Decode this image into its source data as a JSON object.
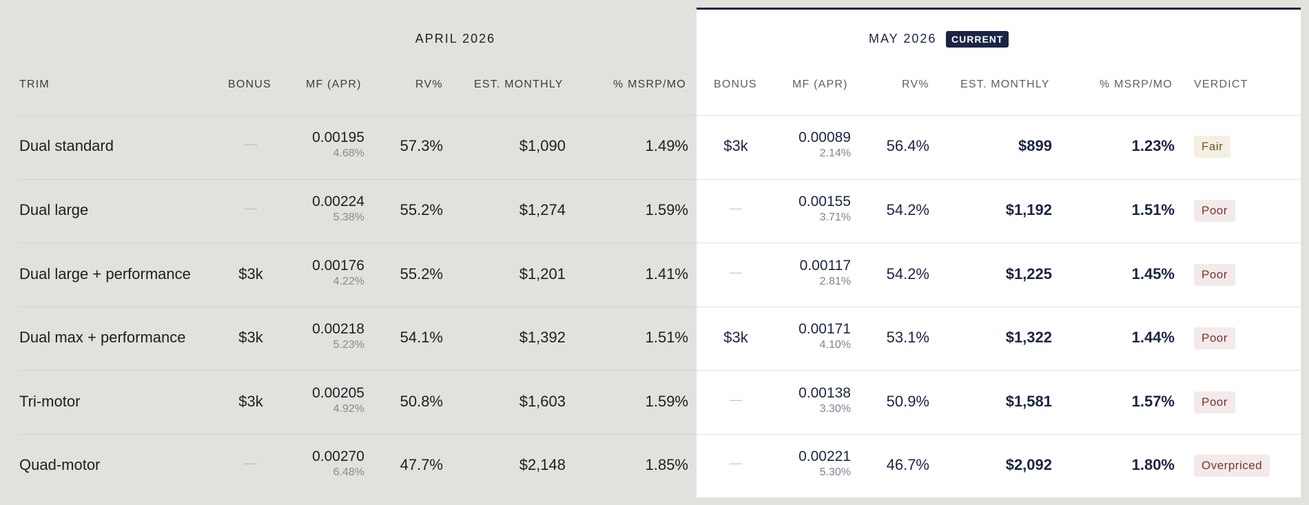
{
  "periods": {
    "april": "APRIL 2026",
    "may": "MAY 2026",
    "current_badge": "CURRENT"
  },
  "headers": {
    "trim": "TRIM",
    "april": [
      "BONUS",
      "MF (APR)",
      "RV%",
      "EST. MONTHLY",
      "% MSRP/MO"
    ],
    "may": [
      "BONUS",
      "MF (APR)",
      "RV%",
      "EST. MONTHLY",
      "% MSRP/MO",
      "VERDICT"
    ]
  },
  "rows": [
    {
      "trim": "Dual standard",
      "april": {
        "bonus": "—",
        "mf": "0.00195",
        "apr": "4.68%",
        "rv": "57.3%",
        "monthly": "$1,090",
        "msrp": "1.49%"
      },
      "may": {
        "bonus": "$3k",
        "mf": "0.00089",
        "apr": "2.14%",
        "rv": "56.4%",
        "monthly": "$899",
        "msrp": "1.23%",
        "verdict": "Fair"
      }
    },
    {
      "trim": "Dual large",
      "april": {
        "bonus": "—",
        "mf": "0.00224",
        "apr": "5.38%",
        "rv": "55.2%",
        "monthly": "$1,274",
        "msrp": "1.59%"
      },
      "may": {
        "bonus": "—",
        "mf": "0.00155",
        "apr": "3.71%",
        "rv": "54.2%",
        "monthly": "$1,192",
        "msrp": "1.51%",
        "verdict": "Poor"
      }
    },
    {
      "trim": "Dual large + performance",
      "april": {
        "bonus": "$3k",
        "mf": "0.00176",
        "apr": "4.22%",
        "rv": "55.2%",
        "monthly": "$1,201",
        "msrp": "1.41%"
      },
      "may": {
        "bonus": "—",
        "mf": "0.00117",
        "apr": "2.81%",
        "rv": "54.2%",
        "monthly": "$1,225",
        "msrp": "1.45%",
        "verdict": "Poor"
      }
    },
    {
      "trim": "Dual max + performance",
      "april": {
        "bonus": "$3k",
        "mf": "0.00218",
        "apr": "5.23%",
        "rv": "54.1%",
        "monthly": "$1,392",
        "msrp": "1.51%"
      },
      "may": {
        "bonus": "$3k",
        "mf": "0.00171",
        "apr": "4.10%",
        "rv": "53.1%",
        "monthly": "$1,322",
        "msrp": "1.44%",
        "verdict": "Poor"
      }
    },
    {
      "trim": "Tri-motor",
      "april": {
        "bonus": "$3k",
        "mf": "0.00205",
        "apr": "4.92%",
        "rv": "50.8%",
        "monthly": "$1,603",
        "msrp": "1.59%"
      },
      "may": {
        "bonus": "—",
        "mf": "0.00138",
        "apr": "3.30%",
        "rv": "50.9%",
        "monthly": "$1,581",
        "msrp": "1.57%",
        "verdict": "Poor"
      }
    },
    {
      "trim": "Quad-motor",
      "april": {
        "bonus": "—",
        "mf": "0.00270",
        "apr": "6.48%",
        "rv": "47.7%",
        "monthly": "$2,148",
        "msrp": "1.85%"
      },
      "may": {
        "bonus": "—",
        "mf": "0.00221",
        "apr": "5.30%",
        "rv": "46.7%",
        "monthly": "$2,092",
        "msrp": "1.80%",
        "verdict": "Overpriced"
      }
    }
  ],
  "colors": {
    "april_bg": "#e1e1dd",
    "may_bg": "#ffffff",
    "accent_navy": "#1b2444",
    "fair_bg": "#f4efe2",
    "poor_bg": "#f4eaea"
  }
}
